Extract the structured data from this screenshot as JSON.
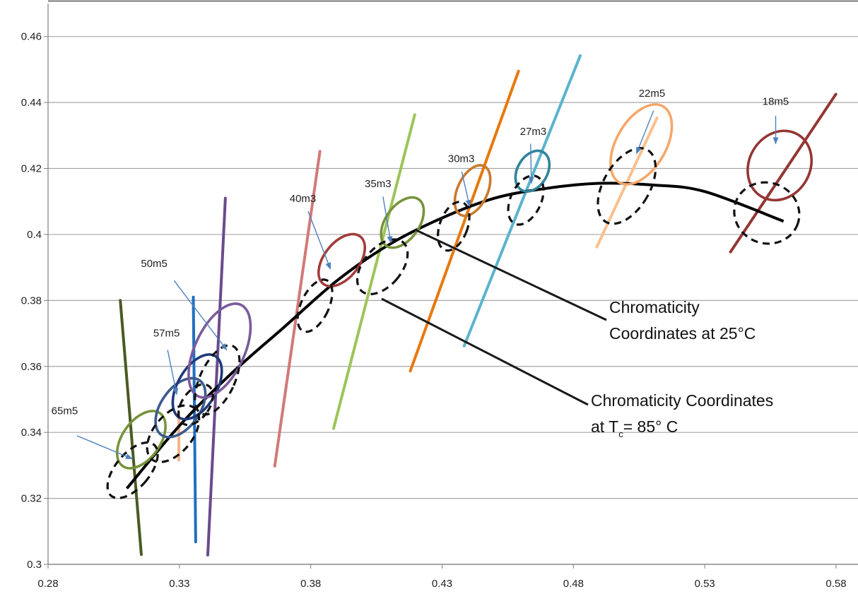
{
  "chart_data": {
    "type": "scatter",
    "title": "",
    "xlabel": "",
    "ylabel": "",
    "xlim": [
      0.28,
      0.58
    ],
    "ylim": [
      0.3,
      0.47
    ],
    "x_ticks": [
      "0.28",
      "0.33",
      "0.38",
      "0.43",
      "0.48",
      "0.53",
      "0.58"
    ],
    "y_ticks": [
      "0.3",
      "0.32",
      "0.34",
      "0.36",
      "0.38",
      "0.4",
      "0.42",
      "0.44",
      "0.46"
    ],
    "grid": "horizontal",
    "planckian_locus": [
      [
        0.31,
        0.323
      ],
      [
        0.33,
        0.342
      ],
      [
        0.35,
        0.358
      ],
      [
        0.37,
        0.372
      ],
      [
        0.39,
        0.386
      ],
      [
        0.41,
        0.397
      ],
      [
        0.43,
        0.405
      ],
      [
        0.45,
        0.411
      ],
      [
        0.47,
        0.414
      ],
      [
        0.49,
        0.4155
      ],
      [
        0.51,
        0.415
      ],
      [
        0.53,
        0.413
      ],
      [
        0.56,
        0.404
      ]
    ],
    "isotherm_lines": [
      {
        "color": "#4a5a23",
        "x1": 0.3075,
        "y1": 0.38,
        "x2": 0.3155,
        "y2": 0.303
      },
      {
        "color": "#f5b48a",
        "x1": 0.3298,
        "y1": 0.3316,
        "x2": 0.3298,
        "y2": 0.346
      },
      {
        "color": "#1f6fc0",
        "x1": 0.3353,
        "y1": 0.381,
        "x2": 0.3362,
        "y2": 0.3068
      },
      {
        "color": "#6a4a8c",
        "x1": 0.3475,
        "y1": 0.411,
        "x2": 0.3408,
        "y2": 0.3028
      },
      {
        "color": "#d07a78",
        "x1": 0.3835,
        "y1": 0.4252,
        "x2": 0.3663,
        "y2": 0.3298
      },
      {
        "color": "#9dc45a",
        "x1": 0.4196,
        "y1": 0.4363,
        "x2": 0.3887,
        "y2": 0.3412
      },
      {
        "color": "#e8780c",
        "x1": 0.4591,
        "y1": 0.4495,
        "x2": 0.4179,
        "y2": 0.3586
      },
      {
        "color": "#5ab4cc",
        "x1": 0.4826,
        "y1": 0.4542,
        "x2": 0.4384,
        "y2": 0.3662
      },
      {
        "color": "#fac08f",
        "x1": 0.5118,
        "y1": 0.4353,
        "x2": 0.4889,
        "y2": 0.3962
      },
      {
        "color": "#943634",
        "x1": 0.5799,
        "y1": 0.4425,
        "x2": 0.5398,
        "y2": 0.3947
      }
    ],
    "series": [
      {
        "name": "Chromaticity Coordinates at 25°C",
        "style": "solid",
        "ellipses": [
          {
            "label": "65m5",
            "x": 0.3155,
            "y": 0.3378,
            "rx": 0.0072,
            "ry": 0.0098,
            "angle": 35,
            "color": "#77933c"
          },
          {
            "label": "57m5",
            "x": 0.3304,
            "y": 0.3475,
            "rx": 0.0074,
            "ry": 0.0101,
            "angle": 35,
            "color": "#3c5a8c"
          },
          {
            "label": "",
            "x": 0.3368,
            "y": 0.3538,
            "rx": 0.0074,
            "ry": 0.0108,
            "angle": 30,
            "color": "#1f3a7a"
          },
          {
            "label": "50m5",
            "x": 0.3453,
            "y": 0.3648,
            "rx": 0.0094,
            "ry": 0.0153,
            "angle": 25,
            "color": "#7b5a9c"
          },
          {
            "label": "40m3",
            "x": 0.3918,
            "y": 0.3922,
            "rx": 0.0067,
            "ry": 0.0091,
            "angle": 38,
            "color": "#a23b3b"
          },
          {
            "label": "35m3",
            "x": 0.4149,
            "y": 0.4036,
            "rx": 0.0064,
            "ry": 0.0086,
            "angle": 35,
            "color": "#77933c"
          },
          {
            "label": "30m3",
            "x": 0.4416,
            "y": 0.4133,
            "rx": 0.0057,
            "ry": 0.0082,
            "angle": 25,
            "color": "#c87b2f"
          },
          {
            "label": "27m3",
            "x": 0.4644,
            "y": 0.4192,
            "rx": 0.0057,
            "ry": 0.0066,
            "angle": 30,
            "color": "#31849b"
          },
          {
            "label": "22m5",
            "x": 0.5058,
            "y": 0.4273,
            "rx": 0.0094,
            "ry": 0.0133,
            "angle": 30,
            "color": "#f4a76a"
          },
          {
            "label": "18m5",
            "x": 0.5585,
            "y": 0.4209,
            "rx": 0.0116,
            "ry": 0.0109,
            "angle": 30,
            "color": "#943634"
          }
        ]
      },
      {
        "name": "Chromaticity Coordinates at T c = 85° C",
        "style": "dashed",
        "ellipses": [
          {
            "label": "",
            "x": 0.3122,
            "y": 0.3285,
            "rx": 0.0065,
            "ry": 0.0101,
            "angle": 40,
            "color": "#111111"
          },
          {
            "label": "",
            "x": 0.3276,
            "y": 0.3396,
            "rx": 0.0073,
            "ry": 0.0101,
            "angle": 40,
            "color": "#111111"
          },
          {
            "label": "",
            "x": 0.3362,
            "y": 0.3484,
            "rx": 0.0052,
            "ry": 0.0069,
            "angle": 35,
            "color": "#111111"
          },
          {
            "label": "",
            "x": 0.3444,
            "y": 0.3559,
            "rx": 0.0066,
            "ry": 0.0113,
            "angle": 25,
            "color": "#111111"
          },
          {
            "label": "",
            "x": 0.3816,
            "y": 0.3784,
            "rx": 0.0053,
            "ry": 0.0085,
            "angle": 25,
            "color": "#111111"
          },
          {
            "label": "",
            "x": 0.4073,
            "y": 0.3902,
            "rx": 0.0072,
            "ry": 0.0097,
            "angle": 40,
            "color": "#111111"
          },
          {
            "label": "",
            "x": 0.4344,
            "y": 0.4025,
            "rx": 0.0053,
            "ry": 0.0077,
            "angle": 20,
            "color": "#111111"
          },
          {
            "label": "",
            "x": 0.4619,
            "y": 0.4104,
            "rx": 0.0058,
            "ry": 0.0079,
            "angle": 25,
            "color": "#111111"
          },
          {
            "label": "",
            "x": 0.5003,
            "y": 0.4147,
            "rx": 0.0088,
            "ry": 0.0126,
            "angle": 30,
            "color": "#111111"
          },
          {
            "label": "",
            "x": 0.5536,
            "y": 0.4065,
            "rx": 0.0125,
            "ry": 0.0092,
            "angle": 20,
            "color": "#111111"
          }
        ]
      }
    ],
    "annotations": {
      "line1": "Chromaticity",
      "line2": "Coordinates at 25°C",
      "line3": "Chromaticity Coordinates",
      "line4_prefix": "at T",
      "line4_sub": "c",
      "line4_suffix": "= 85° C"
    }
  }
}
